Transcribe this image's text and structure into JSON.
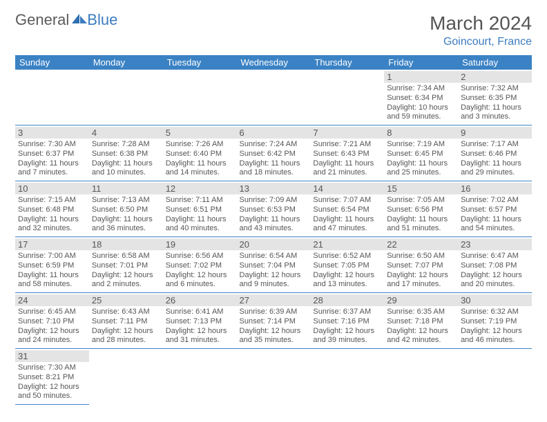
{
  "brand": {
    "part1": "General",
    "part2": "Blue"
  },
  "title": "March 2024",
  "location": "Goincourt, France",
  "colors": {
    "header_bg": "#3b82c4",
    "header_text": "#ffffff",
    "daynum_bg": "#e4e4e4",
    "cell_border": "#3b82c4",
    "brand_gray": "#5a5a5a",
    "brand_blue": "#3b7bbf",
    "text": "#555555"
  },
  "day_headers": [
    "Sunday",
    "Monday",
    "Tuesday",
    "Wednesday",
    "Thursday",
    "Friday",
    "Saturday"
  ],
  "weeks": [
    [
      {
        "empty": true
      },
      {
        "empty": true
      },
      {
        "empty": true
      },
      {
        "empty": true
      },
      {
        "empty": true
      },
      {
        "day": 1,
        "sunrise": "7:34 AM",
        "sunset": "6:34 PM",
        "daylight": "10 hours and 59 minutes."
      },
      {
        "day": 2,
        "sunrise": "7:32 AM",
        "sunset": "6:35 PM",
        "daylight": "11 hours and 3 minutes."
      }
    ],
    [
      {
        "day": 3,
        "sunrise": "7:30 AM",
        "sunset": "6:37 PM",
        "daylight": "11 hours and 7 minutes."
      },
      {
        "day": 4,
        "sunrise": "7:28 AM",
        "sunset": "6:38 PM",
        "daylight": "11 hours and 10 minutes."
      },
      {
        "day": 5,
        "sunrise": "7:26 AM",
        "sunset": "6:40 PM",
        "daylight": "11 hours and 14 minutes."
      },
      {
        "day": 6,
        "sunrise": "7:24 AM",
        "sunset": "6:42 PM",
        "daylight": "11 hours and 18 minutes."
      },
      {
        "day": 7,
        "sunrise": "7:21 AM",
        "sunset": "6:43 PM",
        "daylight": "11 hours and 21 minutes."
      },
      {
        "day": 8,
        "sunrise": "7:19 AM",
        "sunset": "6:45 PM",
        "daylight": "11 hours and 25 minutes."
      },
      {
        "day": 9,
        "sunrise": "7:17 AM",
        "sunset": "6:46 PM",
        "daylight": "11 hours and 29 minutes."
      }
    ],
    [
      {
        "day": 10,
        "sunrise": "7:15 AM",
        "sunset": "6:48 PM",
        "daylight": "11 hours and 32 minutes."
      },
      {
        "day": 11,
        "sunrise": "7:13 AM",
        "sunset": "6:50 PM",
        "daylight": "11 hours and 36 minutes."
      },
      {
        "day": 12,
        "sunrise": "7:11 AM",
        "sunset": "6:51 PM",
        "daylight": "11 hours and 40 minutes."
      },
      {
        "day": 13,
        "sunrise": "7:09 AM",
        "sunset": "6:53 PM",
        "daylight": "11 hours and 43 minutes."
      },
      {
        "day": 14,
        "sunrise": "7:07 AM",
        "sunset": "6:54 PM",
        "daylight": "11 hours and 47 minutes."
      },
      {
        "day": 15,
        "sunrise": "7:05 AM",
        "sunset": "6:56 PM",
        "daylight": "11 hours and 51 minutes."
      },
      {
        "day": 16,
        "sunrise": "7:02 AM",
        "sunset": "6:57 PM",
        "daylight": "11 hours and 54 minutes."
      }
    ],
    [
      {
        "day": 17,
        "sunrise": "7:00 AM",
        "sunset": "6:59 PM",
        "daylight": "11 hours and 58 minutes."
      },
      {
        "day": 18,
        "sunrise": "6:58 AM",
        "sunset": "7:01 PM",
        "daylight": "12 hours and 2 minutes."
      },
      {
        "day": 19,
        "sunrise": "6:56 AM",
        "sunset": "7:02 PM",
        "daylight": "12 hours and 6 minutes."
      },
      {
        "day": 20,
        "sunrise": "6:54 AM",
        "sunset": "7:04 PM",
        "daylight": "12 hours and 9 minutes."
      },
      {
        "day": 21,
        "sunrise": "6:52 AM",
        "sunset": "7:05 PM",
        "daylight": "12 hours and 13 minutes."
      },
      {
        "day": 22,
        "sunrise": "6:50 AM",
        "sunset": "7:07 PM",
        "daylight": "12 hours and 17 minutes."
      },
      {
        "day": 23,
        "sunrise": "6:47 AM",
        "sunset": "7:08 PM",
        "daylight": "12 hours and 20 minutes."
      }
    ],
    [
      {
        "day": 24,
        "sunrise": "6:45 AM",
        "sunset": "7:10 PM",
        "daylight": "12 hours and 24 minutes."
      },
      {
        "day": 25,
        "sunrise": "6:43 AM",
        "sunset": "7:11 PM",
        "daylight": "12 hours and 28 minutes."
      },
      {
        "day": 26,
        "sunrise": "6:41 AM",
        "sunset": "7:13 PM",
        "daylight": "12 hours and 31 minutes."
      },
      {
        "day": 27,
        "sunrise": "6:39 AM",
        "sunset": "7:14 PM",
        "daylight": "12 hours and 35 minutes."
      },
      {
        "day": 28,
        "sunrise": "6:37 AM",
        "sunset": "7:16 PM",
        "daylight": "12 hours and 39 minutes."
      },
      {
        "day": 29,
        "sunrise": "6:35 AM",
        "sunset": "7:18 PM",
        "daylight": "12 hours and 42 minutes."
      },
      {
        "day": 30,
        "sunrise": "6:32 AM",
        "sunset": "7:19 PM",
        "daylight": "12 hours and 46 minutes."
      }
    ],
    [
      {
        "day": 31,
        "sunrise": "7:30 AM",
        "sunset": "8:21 PM",
        "daylight": "12 hours and 50 minutes."
      },
      {
        "empty": true,
        "noborder": true
      },
      {
        "empty": true,
        "noborder": true
      },
      {
        "empty": true,
        "noborder": true
      },
      {
        "empty": true,
        "noborder": true
      },
      {
        "empty": true,
        "noborder": true
      },
      {
        "empty": true,
        "noborder": true
      }
    ]
  ],
  "labels": {
    "sunrise": "Sunrise: ",
    "sunset": "Sunset: ",
    "daylight": "Daylight: "
  }
}
